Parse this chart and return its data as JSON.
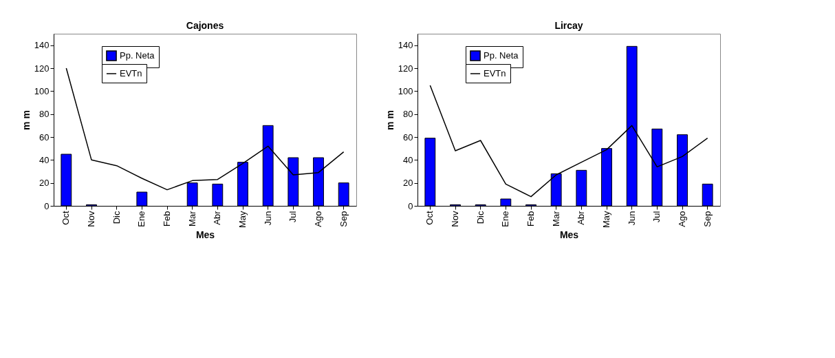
{
  "chart_data": [
    {
      "type": "bar",
      "title": "Cajones",
      "xlabel": "Mes",
      "ylabel": "m m",
      "categories": [
        "Oct",
        "Nov",
        "Dic",
        "Ene",
        "Feb",
        "Mar",
        "Abr",
        "May",
        "Jun",
        "Jul",
        "Ago",
        "Sep"
      ],
      "ylim": [
        0,
        150
      ],
      "yticks": [
        0,
        20,
        40,
        60,
        80,
        100,
        120,
        140
      ],
      "grid": false,
      "legend": "top left",
      "series": [
        {
          "name": "Pp. Neta",
          "color": "#0000ff",
          "values": [
            45,
            1,
            0,
            12,
            0,
            20,
            19,
            38,
            70,
            42,
            42,
            20
          ]
        },
        {
          "name": "EVTn",
          "type": "line",
          "color": "#000000",
          "values": [
            120,
            40,
            35,
            24,
            14,
            22,
            23,
            37,
            52,
            27,
            29,
            47
          ]
        }
      ]
    },
    {
      "type": "bar",
      "title": "Lircay",
      "xlabel": "Mes",
      "ylabel": "m m",
      "categories": [
        "Oct",
        "Nov",
        "Dic",
        "Ene",
        "Feb",
        "Mar",
        "Abr",
        "May",
        "Jun",
        "Jul",
        "Ago",
        "Sep"
      ],
      "ylim": [
        0,
        150
      ],
      "yticks": [
        0,
        20,
        40,
        60,
        80,
        100,
        120,
        140
      ],
      "grid": false,
      "legend": "top left",
      "series": [
        {
          "name": "Pp. Neta",
          "color": "#0000ff",
          "values": [
            59,
            1,
            1,
            6,
            1,
            28,
            31,
            50,
            139,
            67,
            62,
            19
          ]
        },
        {
          "name": "EVTn",
          "type": "line",
          "color": "#000000",
          "values": [
            105,
            48,
            57,
            19,
            8,
            27,
            38,
            49,
            70,
            34,
            43,
            59
          ]
        }
      ]
    }
  ]
}
